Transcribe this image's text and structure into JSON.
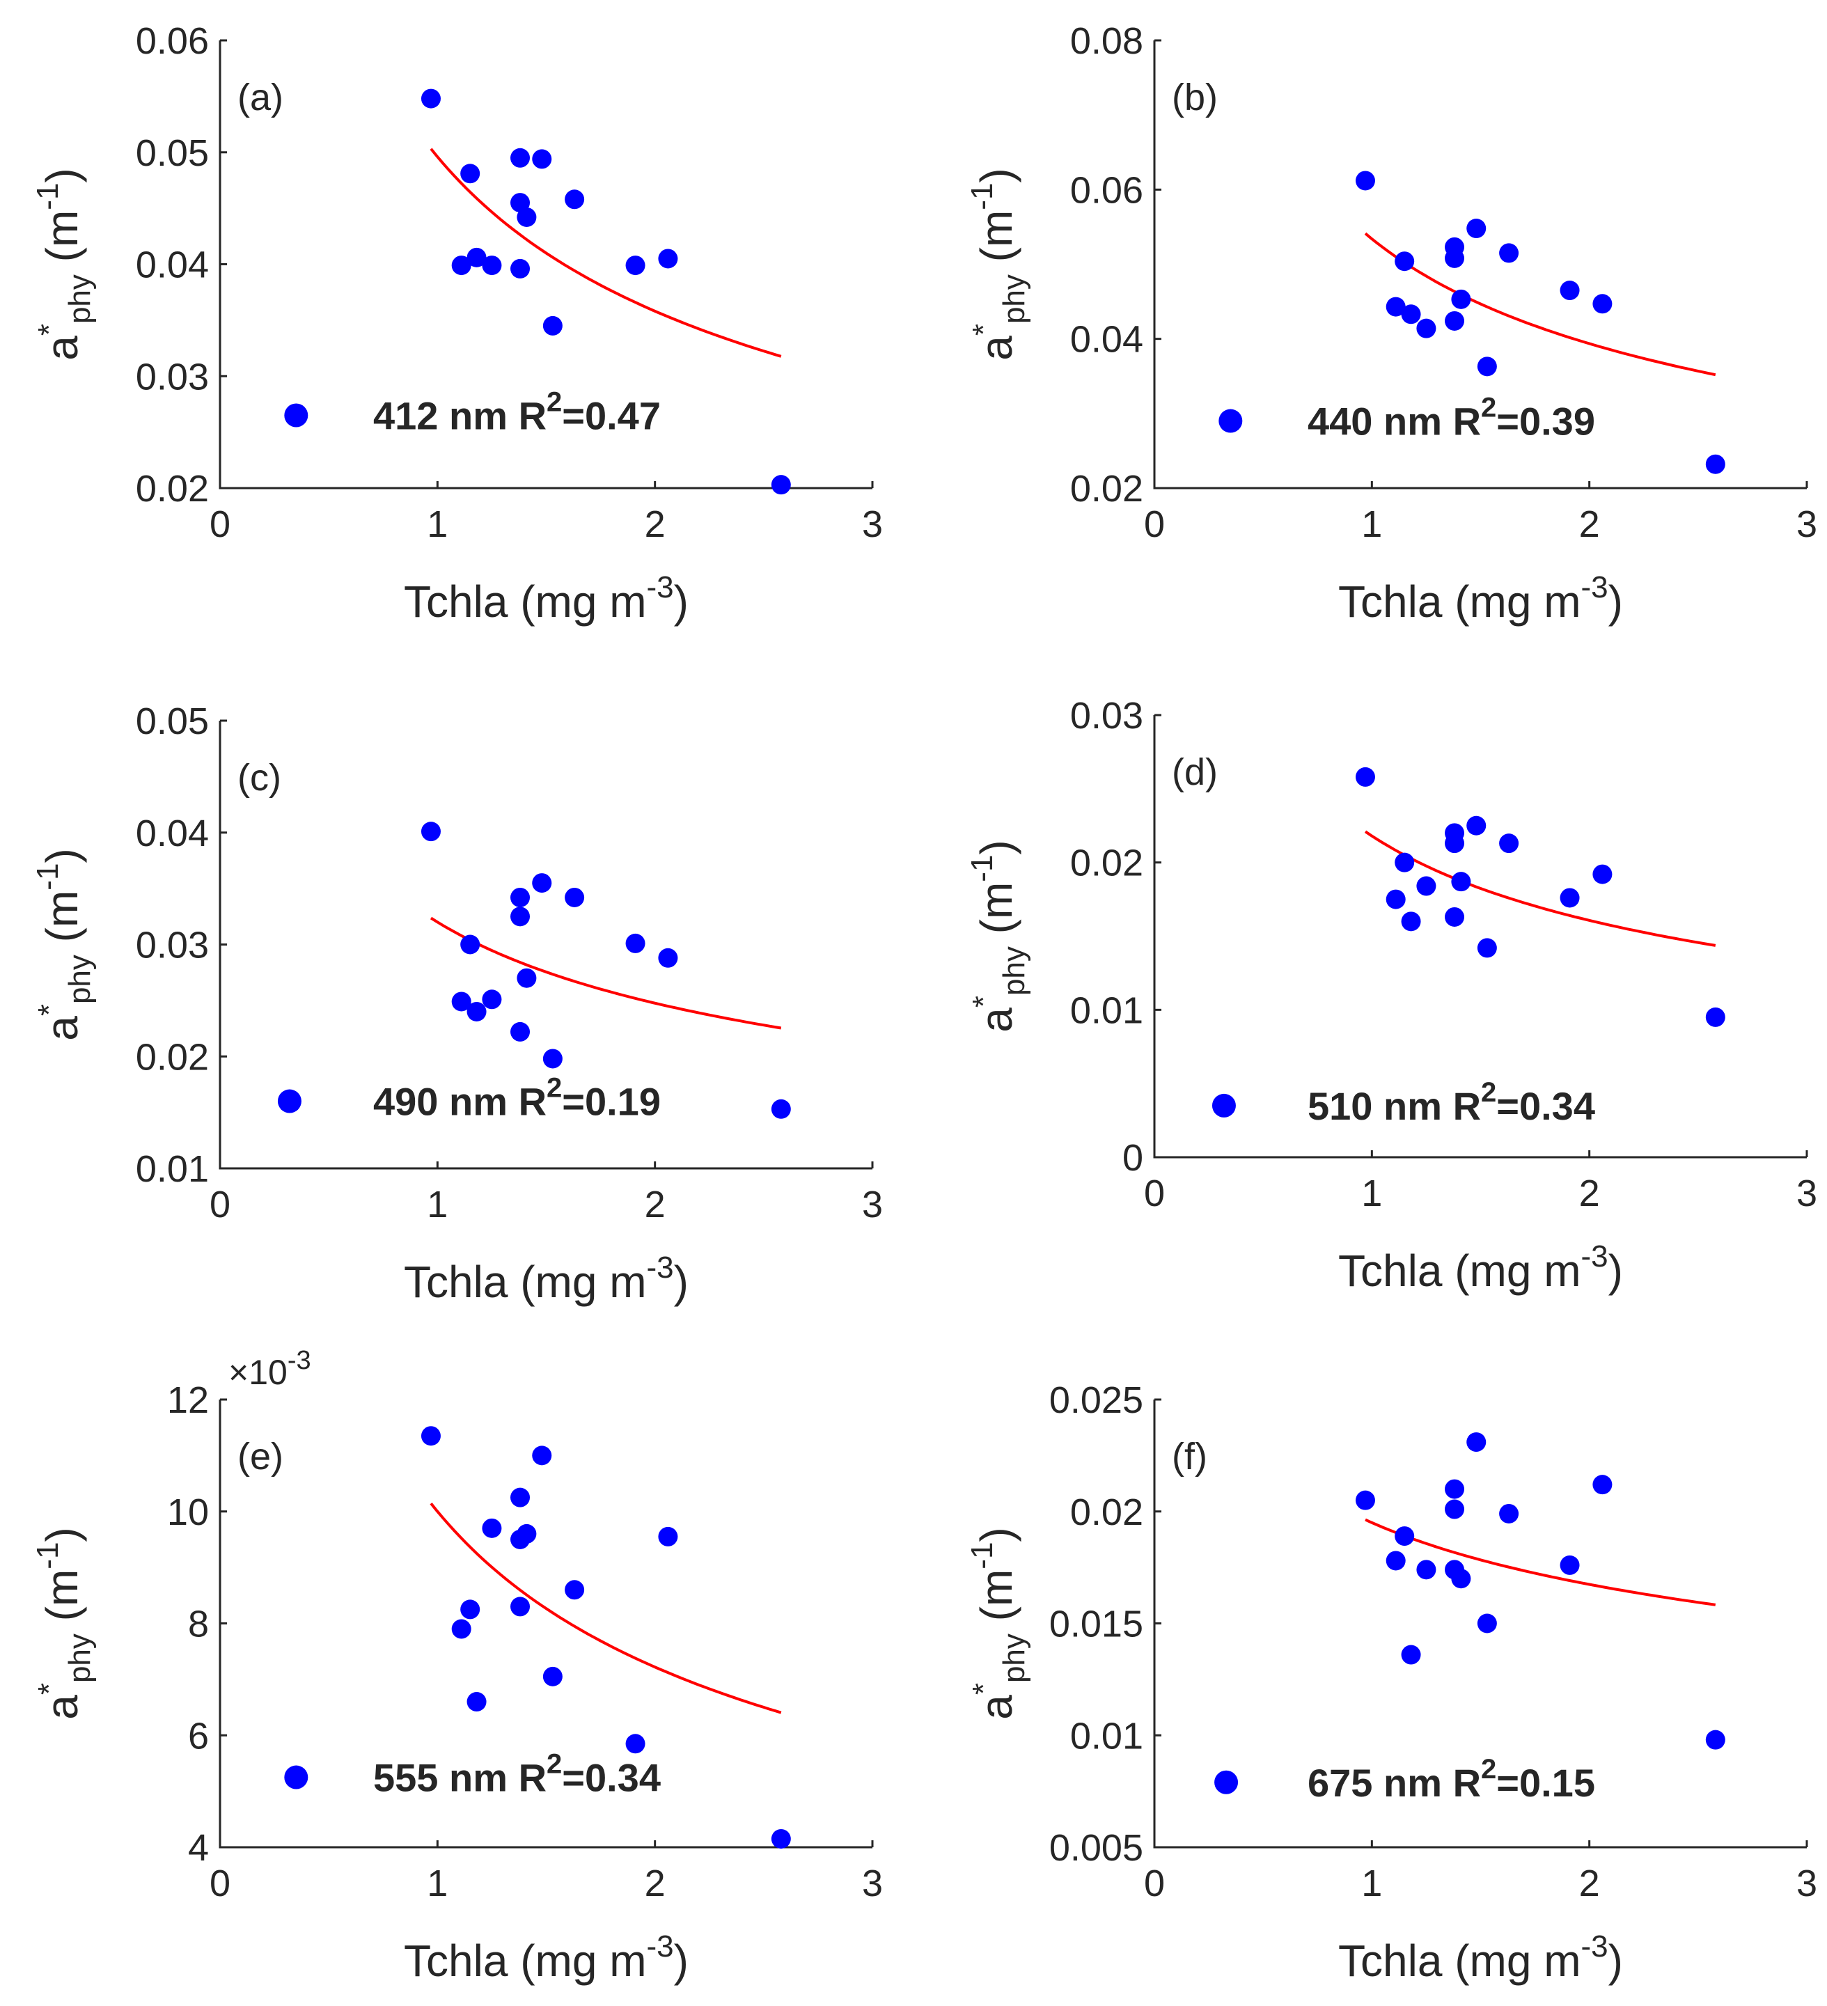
{
  "chart_data": [
    {
      "type": "scatter",
      "panel": "(a)",
      "xlabel": "Tchla (mg m",
      "xlabel_sup": "-3",
      "xlabel_end": ")",
      "ylabel": "a",
      "ylabel_sup": "*",
      "ylabel_sub": "phy",
      "ylabel_unit": " (m",
      "ylabel_unit_sup": "-1",
      "ylabel_unit_end": ")",
      "xlim": [
        0,
        3
      ],
      "ylim": [
        0.02,
        0.06
      ],
      "xticks": [
        "0",
        "1",
        "2",
        "3"
      ],
      "yticks": [
        "0.02",
        "0.03",
        "0.04",
        "0.05",
        "0.06"
      ],
      "legend_wavelength": "412 nm",
      "legend_r2_prefix": "R",
      "legend_r2_sup": "2",
      "legend_r2_value": "=0.47",
      "marker_color": "#0000ff",
      "fit_color": "#ff0000",
      "fit_curve": {
        "x": [
          0.97,
          2.58
        ],
        "a": 0.0496,
        "b": -0.47
      },
      "points": [
        {
          "x": 0.97,
          "y": 0.0548
        },
        {
          "x": 1.15,
          "y": 0.0481
        },
        {
          "x": 1.38,
          "y": 0.0495
        },
        {
          "x": 1.48,
          "y": 0.0494
        },
        {
          "x": 1.38,
          "y": 0.0455
        },
        {
          "x": 1.41,
          "y": 0.0442
        },
        {
          "x": 1.63,
          "y": 0.0458
        },
        {
          "x": 1.11,
          "y": 0.0399
        },
        {
          "x": 1.18,
          "y": 0.0406
        },
        {
          "x": 1.25,
          "y": 0.0399
        },
        {
          "x": 1.38,
          "y": 0.0396
        },
        {
          "x": 1.91,
          "y": 0.0399
        },
        {
          "x": 2.06,
          "y": 0.0405
        },
        {
          "x": 1.53,
          "y": 0.0345
        },
        {
          "x": 2.58,
          "y": 0.0203
        }
      ]
    },
    {
      "type": "scatter",
      "panel": "(b)",
      "xlabel": "Tchla (mg m",
      "xlabel_sup": "-3",
      "xlabel_end": ")",
      "ylabel": "a",
      "ylabel_sup": "*",
      "ylabel_sub": "phy",
      "ylabel_unit": " (m",
      "ylabel_unit_sup": "-1",
      "ylabel_unit_end": ")",
      "xlim": [
        0,
        3
      ],
      "ylim": [
        0.02,
        0.08
      ],
      "xticks": [
        "0",
        "1",
        "2",
        "3"
      ],
      "yticks": [
        "0.02",
        "0.04",
        "0.06",
        "0.08"
      ],
      "legend_wavelength": "440 nm",
      "legend_r2_prefix": "R",
      "legend_r2_sup": "2",
      "legend_r2_value": "=0.39",
      "marker_color": "#0000ff",
      "fit_color": "#ff0000",
      "fit_curve": {
        "x": [
          0.97,
          2.58
        ],
        "a": 0.0534,
        "b": -0.44
      },
      "points": [
        {
          "x": 0.97,
          "y": 0.0612
        },
        {
          "x": 1.15,
          "y": 0.0504
        },
        {
          "x": 1.38,
          "y": 0.0523
        },
        {
          "x": 1.38,
          "y": 0.0508
        },
        {
          "x": 1.48,
          "y": 0.0548
        },
        {
          "x": 1.63,
          "y": 0.0515
        },
        {
          "x": 1.11,
          "y": 0.0443
        },
        {
          "x": 1.18,
          "y": 0.0433
        },
        {
          "x": 1.25,
          "y": 0.0414
        },
        {
          "x": 1.41,
          "y": 0.0453
        },
        {
          "x": 1.38,
          "y": 0.0424
        },
        {
          "x": 1.91,
          "y": 0.0465
        },
        {
          "x": 2.06,
          "y": 0.0447
        },
        {
          "x": 1.53,
          "y": 0.0363
        },
        {
          "x": 2.58,
          "y": 0.0232
        }
      ]
    },
    {
      "type": "scatter",
      "panel": "(c)",
      "xlabel": "Tchla (mg m",
      "xlabel_sup": "-3",
      "xlabel_end": ")",
      "ylabel": "a",
      "ylabel_sup": "*",
      "ylabel_sub": "phy",
      "ylabel_unit": " (m",
      "ylabel_unit_sup": "-1",
      "ylabel_unit_end": ")",
      "xlim": [
        0,
        3
      ],
      "ylim": [
        0.01,
        0.05
      ],
      "xticks": [
        "0",
        "1",
        "2",
        "3"
      ],
      "yticks": [
        "0.01",
        "0.02",
        "0.03",
        "0.04",
        "0.05"
      ],
      "legend_wavelength": "490 nm",
      "legend_r2_prefix": "R",
      "legend_r2_sup": "2",
      "legend_r2_value": "=0.19",
      "marker_color": "#0000ff",
      "fit_color": "#ff0000",
      "fit_curve": {
        "x": [
          0.97,
          2.58
        ],
        "a": 0.032,
        "b": -0.37
      },
      "points": [
        {
          "x": 0.97,
          "y": 0.0401
        },
        {
          "x": 1.38,
          "y": 0.0342
        },
        {
          "x": 1.48,
          "y": 0.0355
        },
        {
          "x": 1.63,
          "y": 0.0342
        },
        {
          "x": 1.38,
          "y": 0.0325
        },
        {
          "x": 1.15,
          "y": 0.03
        },
        {
          "x": 1.91,
          "y": 0.0301
        },
        {
          "x": 2.06,
          "y": 0.0288
        },
        {
          "x": 1.41,
          "y": 0.027
        },
        {
          "x": 1.11,
          "y": 0.0249
        },
        {
          "x": 1.25,
          "y": 0.0251
        },
        {
          "x": 1.18,
          "y": 0.024
        },
        {
          "x": 1.38,
          "y": 0.0222
        },
        {
          "x": 1.53,
          "y": 0.0198
        },
        {
          "x": 2.58,
          "y": 0.0153
        }
      ]
    },
    {
      "type": "scatter",
      "panel": "(d)",
      "xlabel": "Tchla (mg m",
      "xlabel_sup": "-3",
      "xlabel_end": ")",
      "ylabel": "a",
      "ylabel_sup": "*",
      "ylabel_sub": "phy",
      "ylabel_unit": " (m",
      "ylabel_unit_sup": "-1",
      "ylabel_unit_end": ")",
      "xlim": [
        0,
        3
      ],
      "ylim": [
        0,
        0.03
      ],
      "xticks": [
        "0",
        "1",
        "2",
        "3"
      ],
      "yticks": [
        "0",
        "0.01",
        "0.02",
        "0.03"
      ],
      "legend_wavelength": "510 nm",
      "legend_r2_prefix": "R",
      "legend_r2_sup": "2",
      "legend_r2_value": "=0.34",
      "marker_color": "#0000ff",
      "fit_color": "#ff0000",
      "fit_curve": {
        "x": [
          0.97,
          2.58
        ],
        "a": 0.0218,
        "b": -0.44
      },
      "points": [
        {
          "x": 0.97,
          "y": 0.0258
        },
        {
          "x": 1.38,
          "y": 0.022
        },
        {
          "x": 1.38,
          "y": 0.0213
        },
        {
          "x": 1.48,
          "y": 0.0225
        },
        {
          "x": 1.63,
          "y": 0.0213
        },
        {
          "x": 1.15,
          "y": 0.02
        },
        {
          "x": 1.25,
          "y": 0.0184
        },
        {
          "x": 1.41,
          "y": 0.0187
        },
        {
          "x": 1.11,
          "y": 0.0175
        },
        {
          "x": 1.18,
          "y": 0.016
        },
        {
          "x": 1.38,
          "y": 0.0163
        },
        {
          "x": 1.91,
          "y": 0.0176
        },
        {
          "x": 2.06,
          "y": 0.0192
        },
        {
          "x": 1.53,
          "y": 0.0142
        },
        {
          "x": 2.58,
          "y": 0.0095
        }
      ]
    },
    {
      "type": "scatter",
      "panel": "(e)",
      "xlabel": "Tchla (mg m",
      "xlabel_sup": "-3",
      "xlabel_end": ")",
      "ylabel": "a",
      "ylabel_sup": "*",
      "ylabel_sub": "phy",
      "ylabel_unit": " (m",
      "ylabel_unit_sup": "-1",
      "ylabel_unit_end": ")",
      "xlim": [
        0,
        3
      ],
      "ylim": [
        4,
        12
      ],
      "y_multiplier_base": "×10",
      "y_multiplier_exp": "-3",
      "xticks": [
        "0",
        "1",
        "2",
        "3"
      ],
      "yticks": [
        "4",
        "6",
        "8",
        "10",
        "12"
      ],
      "legend_wavelength": "555 nm",
      "legend_r2_prefix": "R",
      "legend_r2_sup": "2",
      "legend_r2_value": "=0.34",
      "marker_color": "#0000ff",
      "fit_color": "#ff0000",
      "fit_curve": {
        "x": [
          0.97,
          2.58
        ],
        "a": 10.0,
        "b": -0.47
      },
      "points": [
        {
          "x": 0.97,
          "y": 11.35
        },
        {
          "x": 1.48,
          "y": 11.0
        },
        {
          "x": 1.38,
          "y": 10.25
        },
        {
          "x": 1.25,
          "y": 9.7
        },
        {
          "x": 1.41,
          "y": 9.6
        },
        {
          "x": 1.38,
          "y": 9.5
        },
        {
          "x": 2.06,
          "y": 9.55
        },
        {
          "x": 1.63,
          "y": 8.6
        },
        {
          "x": 1.38,
          "y": 8.3
        },
        {
          "x": 1.15,
          "y": 8.25
        },
        {
          "x": 1.11,
          "y": 7.9
        },
        {
          "x": 1.53,
          "y": 7.05
        },
        {
          "x": 1.18,
          "y": 6.6
        },
        {
          "x": 1.91,
          "y": 5.85
        },
        {
          "x": 2.58,
          "y": 4.15
        }
      ]
    },
    {
      "type": "scatter",
      "panel": "(f)",
      "xlabel": "Tchla (mg m",
      "xlabel_sup": "-3",
      "xlabel_end": ")",
      "ylabel": "a",
      "ylabel_sup": "*",
      "ylabel_sub": "phy",
      "ylabel_unit": " (m",
      "ylabel_unit_sup": "-1",
      "ylabel_unit_end": ")",
      "xlim": [
        0,
        3
      ],
      "ylim": [
        0.005,
        0.025
      ],
      "xticks": [
        "0",
        "1",
        "2",
        "3"
      ],
      "yticks": [
        "0.005",
        "0.01",
        "0.015",
        "0.02",
        "0.025"
      ],
      "legend_wavelength": "675 nm",
      "legend_r2_prefix": "R",
      "legend_r2_sup": "2",
      "legend_r2_value": "=0.15",
      "marker_color": "#0000ff",
      "fit_color": "#ff0000",
      "fit_curve": {
        "x": [
          0.97,
          2.58
        ],
        "a": 0.0195,
        "b": -0.22
      },
      "points": [
        {
          "x": 1.48,
          "y": 0.0231
        },
        {
          "x": 1.38,
          "y": 0.021
        },
        {
          "x": 2.06,
          "y": 0.0212
        },
        {
          "x": 0.97,
          "y": 0.0205
        },
        {
          "x": 1.38,
          "y": 0.0201
        },
        {
          "x": 1.63,
          "y": 0.0199
        },
        {
          "x": 1.15,
          "y": 0.0189
        },
        {
          "x": 1.11,
          "y": 0.0178
        },
        {
          "x": 1.25,
          "y": 0.0174
        },
        {
          "x": 1.38,
          "y": 0.0174
        },
        {
          "x": 1.41,
          "y": 0.017
        },
        {
          "x": 1.91,
          "y": 0.0176
        },
        {
          "x": 1.53,
          "y": 0.015
        },
        {
          "x": 1.18,
          "y": 0.0136
        },
        {
          "x": 2.58,
          "y": 0.0098
        }
      ]
    }
  ]
}
